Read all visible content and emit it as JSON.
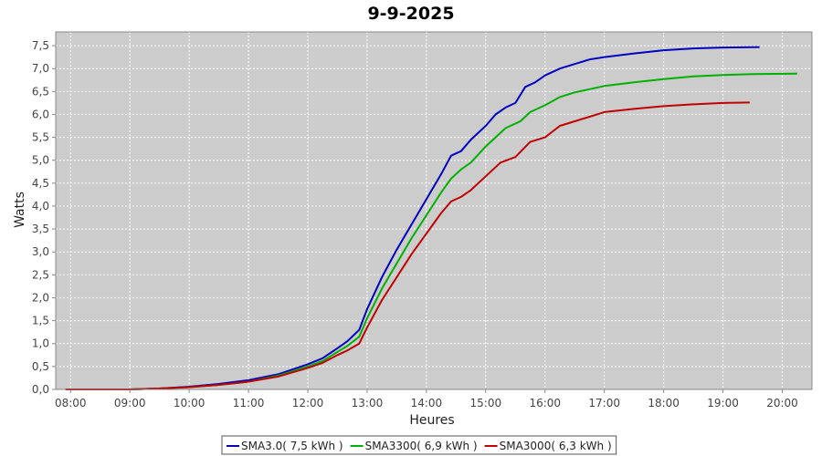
{
  "chart_data": {
    "type": "line",
    "title": "9-9-2025",
    "xlabel": "Heures",
    "ylabel": "Watts",
    "x_ticks": [
      "08:00",
      "09:00",
      "10:00",
      "11:00",
      "12:00",
      "13:00",
      "14:00",
      "15:00",
      "16:00",
      "17:00",
      "18:00",
      "19:00",
      "20:00"
    ],
    "y_ticks": [
      "0,0",
      "0,5",
      "1,0",
      "1,5",
      "2,0",
      "2,5",
      "3,0",
      "3,5",
      "4,0",
      "4,5",
      "5,0",
      "5,5",
      "6,0",
      "6,5",
      "7,0",
      "7,5"
    ],
    "xlim": [
      "07:45",
      "20:30"
    ],
    "ylim": [
      0,
      7.8
    ],
    "grid": true,
    "legend_position": "bottom",
    "series": [
      {
        "name": "SMA3.0( 7,5 kWh )",
        "color": "#0000c0",
        "points": [
          [
            "07:55",
            0
          ],
          [
            "09:00",
            0
          ],
          [
            "09:30",
            0.02
          ],
          [
            "10:00",
            0.06
          ],
          [
            "10:30",
            0.12
          ],
          [
            "11:00",
            0.2
          ],
          [
            "11:30",
            0.33
          ],
          [
            "12:00",
            0.55
          ],
          [
            "12:15",
            0.68
          ],
          [
            "12:30",
            0.9
          ],
          [
            "12:40",
            1.05
          ],
          [
            "12:52",
            1.3
          ],
          [
            "13:00",
            1.75
          ],
          [
            "13:15",
            2.45
          ],
          [
            "13:30",
            3.05
          ],
          [
            "13:45",
            3.6
          ],
          [
            "14:00",
            4.15
          ],
          [
            "14:15",
            4.7
          ],
          [
            "14:25",
            5.1
          ],
          [
            "14:35",
            5.2
          ],
          [
            "14:45",
            5.45
          ],
          [
            "15:00",
            5.75
          ],
          [
            "15:10",
            6.0
          ],
          [
            "15:20",
            6.15
          ],
          [
            "15:30",
            6.25
          ],
          [
            "15:40",
            6.6
          ],
          [
            "15:50",
            6.7
          ],
          [
            "16:00",
            6.85
          ],
          [
            "16:15",
            7.0
          ],
          [
            "16:30",
            7.1
          ],
          [
            "16:45",
            7.2
          ],
          [
            "17:00",
            7.25
          ],
          [
            "17:30",
            7.33
          ],
          [
            "18:00",
            7.4
          ],
          [
            "18:30",
            7.44
          ],
          [
            "19:00",
            7.46
          ],
          [
            "19:37",
            7.47
          ]
        ]
      },
      {
        "name": "SMA3300( 6,9 kWh )",
        "color": "#00b000",
        "points": [
          [
            "07:55",
            0
          ],
          [
            "09:00",
            0
          ],
          [
            "09:30",
            0.02
          ],
          [
            "10:00",
            0.05
          ],
          [
            "10:30",
            0.1
          ],
          [
            "11:00",
            0.17
          ],
          [
            "11:30",
            0.3
          ],
          [
            "12:00",
            0.5
          ],
          [
            "12:15",
            0.62
          ],
          [
            "12:30",
            0.82
          ],
          [
            "12:40",
            0.95
          ],
          [
            "12:52",
            1.15
          ],
          [
            "13:00",
            1.55
          ],
          [
            "13:15",
            2.2
          ],
          [
            "13:30",
            2.75
          ],
          [
            "13:45",
            3.3
          ],
          [
            "14:00",
            3.8
          ],
          [
            "14:15",
            4.3
          ],
          [
            "14:25",
            4.6
          ],
          [
            "14:35",
            4.8
          ],
          [
            "14:45",
            4.95
          ],
          [
            "15:00",
            5.3
          ],
          [
            "15:10",
            5.5
          ],
          [
            "15:20",
            5.7
          ],
          [
            "15:35",
            5.85
          ],
          [
            "15:45",
            6.05
          ],
          [
            "16:00",
            6.2
          ],
          [
            "16:15",
            6.38
          ],
          [
            "16:30",
            6.48
          ],
          [
            "16:45",
            6.55
          ],
          [
            "17:00",
            6.62
          ],
          [
            "17:30",
            6.7
          ],
          [
            "18:00",
            6.77
          ],
          [
            "18:30",
            6.83
          ],
          [
            "19:00",
            6.86
          ],
          [
            "19:30",
            6.88
          ],
          [
            "20:15",
            6.89
          ]
        ]
      },
      {
        "name": "SMA3000( 6,3 kWh )",
        "color": "#c00000",
        "points": [
          [
            "07:55",
            0
          ],
          [
            "09:00",
            0
          ],
          [
            "09:30",
            0.02
          ],
          [
            "10:00",
            0.05
          ],
          [
            "10:30",
            0.1
          ],
          [
            "11:00",
            0.17
          ],
          [
            "11:30",
            0.28
          ],
          [
            "12:00",
            0.47
          ],
          [
            "12:15",
            0.58
          ],
          [
            "12:30",
            0.75
          ],
          [
            "12:40",
            0.85
          ],
          [
            "12:52",
            1.0
          ],
          [
            "13:00",
            1.35
          ],
          [
            "13:15",
            1.95
          ],
          [
            "13:30",
            2.45
          ],
          [
            "13:45",
            2.95
          ],
          [
            "14:00",
            3.4
          ],
          [
            "14:15",
            3.85
          ],
          [
            "14:25",
            4.1
          ],
          [
            "14:35",
            4.2
          ],
          [
            "14:45",
            4.35
          ],
          [
            "15:00",
            4.65
          ],
          [
            "15:15",
            4.95
          ],
          [
            "15:30",
            5.07
          ],
          [
            "15:45",
            5.4
          ],
          [
            "16:00",
            5.5
          ],
          [
            "16:15",
            5.75
          ],
          [
            "16:30",
            5.85
          ],
          [
            "16:45",
            5.95
          ],
          [
            "17:00",
            6.05
          ],
          [
            "17:30",
            6.12
          ],
          [
            "18:00",
            6.18
          ],
          [
            "18:30",
            6.22
          ],
          [
            "19:00",
            6.25
          ],
          [
            "19:27",
            6.26
          ]
        ]
      }
    ]
  }
}
